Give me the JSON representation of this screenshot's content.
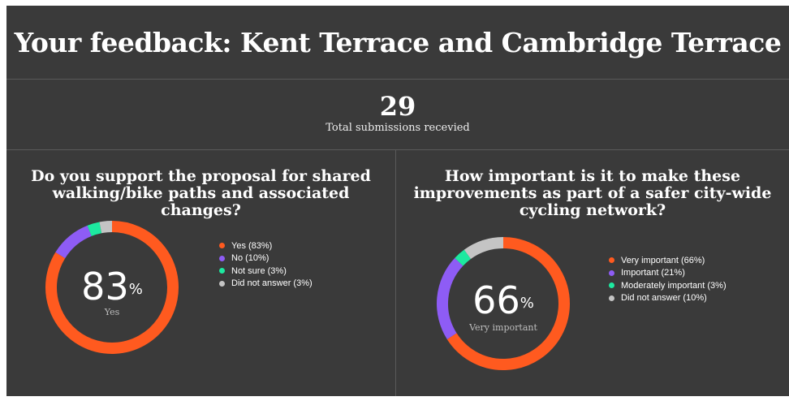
{
  "title": "Your feedback: Kent Terrace and Cambridge Terrace",
  "summary": {
    "value": "29",
    "label": "Total submissions recevied"
  },
  "chart_data": [
    {
      "type": "pie",
      "donut": true,
      "title": "Do you support the proposal for shared walking/bike paths and associated changes?",
      "center_value": "83",
      "center_unit": "%",
      "center_label": "Yes",
      "legend_position": "right",
      "series": [
        {
          "name": "Yes (83%)",
          "value": 83,
          "color": "#ff5a1f"
        },
        {
          "name": "No (10%)",
          "value": 10,
          "color": "#8e5cf5"
        },
        {
          "name": "Not sure (3%)",
          "value": 3,
          "color": "#1de9a0"
        },
        {
          "name": "Did not answer (3%)",
          "value": 3,
          "color": "#c4c4c4"
        }
      ]
    },
    {
      "type": "pie",
      "donut": true,
      "title": "How important is it to make these improvements as part of a safer city-wide cycling network?",
      "center_value": "66",
      "center_unit": "%",
      "center_label": "Very important",
      "legend_position": "right",
      "series": [
        {
          "name": "Very important (66%)",
          "value": 66,
          "color": "#ff5a1f"
        },
        {
          "name": "Important (21%)",
          "value": 21,
          "color": "#8e5cf5"
        },
        {
          "name": "Moderately important (3%)",
          "value": 3,
          "color": "#1de9a0"
        },
        {
          "name": "Did not answer (10%)",
          "value": 10,
          "color": "#c4c4c4"
        }
      ]
    }
  ]
}
